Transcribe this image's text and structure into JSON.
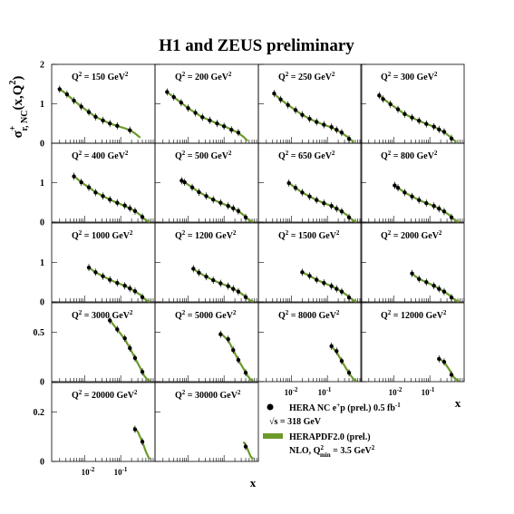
{
  "title": "H1 and ZEUS preliminary",
  "y_axis_label": {
    "main": "σ",
    "sup": "+",
    "sub": "r, NC",
    "args": "(x,Q",
    "args_sup": "2",
    "close": ")"
  },
  "x_axis_label": "x",
  "x_tick_labels": {
    "e1_base": "10",
    "e1_exp": "-2",
    "e2_base": "10",
    "e2_exp": "-1"
  },
  "legend": {
    "data_label_main": "HERA NC e",
    "data_label_sup": "+",
    "data_label_rest": "p (prel.) 0.5 fb",
    "data_label_exp": "-1",
    "sqrt_s": "√s = 318 GeV",
    "fit_label": "HERAPDF2.0 (prel.)",
    "fit_detail_main": "NLO, Q",
    "fit_detail_sup": "2",
    "fit_detail_sub": "min",
    "fit_detail_rest": " = 3.5 GeV",
    "fit_detail_exp": "2"
  },
  "colors": {
    "data_marker": "#000000",
    "fit_band": "#6b9a2a",
    "axes": "#000000",
    "background": "#ffffff"
  },
  "chart_data": [
    {
      "type": "line",
      "q2": "150",
      "ylim": [
        0,
        2
      ],
      "yticks": [
        "0",
        "1",
        "2"
      ],
      "x": [
        0.002,
        0.0032,
        0.005,
        0.008,
        0.013,
        0.02,
        0.032,
        0.05,
        0.08,
        0.18
      ],
      "y": [
        1.37,
        1.24,
        1.08,
        0.93,
        0.79,
        0.67,
        0.58,
        0.5,
        0.44,
        0.33
      ],
      "fit_x": [
        0.0018,
        0.003,
        0.005,
        0.008,
        0.013,
        0.02,
        0.032,
        0.05,
        0.08,
        0.13,
        0.18,
        0.25,
        0.35
      ],
      "fit_y": [
        1.4,
        1.26,
        1.08,
        0.93,
        0.79,
        0.67,
        0.58,
        0.5,
        0.44,
        0.38,
        0.33,
        0.25,
        0.14
      ]
    },
    {
      "type": "line",
      "q2": "200",
      "ylim": [
        0,
        2
      ],
      "yticks": [
        "0",
        "1",
        "2"
      ],
      "x": [
        0.0026,
        0.004,
        0.0064,
        0.01,
        0.016,
        0.025,
        0.04,
        0.064,
        0.1,
        0.16,
        0.25
      ],
      "y": [
        1.3,
        1.17,
        1.03,
        0.89,
        0.77,
        0.66,
        0.58,
        0.5,
        0.43,
        0.34,
        0.27
      ],
      "fit_x": [
        0.0024,
        0.004,
        0.0064,
        0.01,
        0.016,
        0.025,
        0.04,
        0.064,
        0.1,
        0.16,
        0.25,
        0.35,
        0.45
      ],
      "fit_y": [
        1.32,
        1.17,
        1.03,
        0.89,
        0.77,
        0.66,
        0.58,
        0.5,
        0.43,
        0.35,
        0.26,
        0.16,
        0.06
      ]
    },
    {
      "type": "line",
      "q2": "250",
      "ylim": [
        0,
        2
      ],
      "yticks": [
        "0",
        "1",
        "2"
      ],
      "x": [
        0.0033,
        0.005,
        0.008,
        0.013,
        0.02,
        0.032,
        0.05,
        0.08,
        0.13,
        0.18,
        0.25,
        0.4
      ],
      "y": [
        1.26,
        1.11,
        0.97,
        0.84,
        0.72,
        0.62,
        0.54,
        0.47,
        0.41,
        0.34,
        0.27,
        0.11
      ],
      "fit_x": [
        0.003,
        0.005,
        0.008,
        0.013,
        0.02,
        0.032,
        0.05,
        0.08,
        0.13,
        0.18,
        0.25,
        0.35,
        0.45,
        0.55
      ],
      "fit_y": [
        1.28,
        1.11,
        0.97,
        0.84,
        0.72,
        0.62,
        0.54,
        0.47,
        0.4,
        0.34,
        0.26,
        0.17,
        0.08,
        0.03
      ]
    },
    {
      "type": "line",
      "q2": "300",
      "ylim": [
        0,
        2
      ],
      "yticks": [
        "0",
        "1",
        "2"
      ],
      "x": [
        0.0039,
        0.005,
        0.008,
        0.013,
        0.02,
        0.032,
        0.05,
        0.08,
        0.13,
        0.18,
        0.25,
        0.4
      ],
      "y": [
        1.21,
        1.12,
        0.99,
        0.86,
        0.74,
        0.65,
        0.57,
        0.49,
        0.42,
        0.35,
        0.29,
        0.12
      ],
      "fit_x": [
        0.0037,
        0.005,
        0.008,
        0.013,
        0.02,
        0.032,
        0.05,
        0.08,
        0.13,
        0.18,
        0.25,
        0.35,
        0.45,
        0.55
      ],
      "fit_y": [
        1.23,
        1.13,
        0.99,
        0.86,
        0.74,
        0.65,
        0.57,
        0.49,
        0.42,
        0.35,
        0.28,
        0.18,
        0.09,
        0.03
      ]
    },
    {
      "type": "line",
      "q2": "400",
      "ylim": [
        0,
        2
      ],
      "yticks": [
        "0",
        "1"
      ],
      "x": [
        0.005,
        0.008,
        0.013,
        0.02,
        0.032,
        0.05,
        0.08,
        0.13,
        0.18,
        0.25,
        0.4
      ],
      "y": [
        1.16,
        1.01,
        0.88,
        0.75,
        0.66,
        0.57,
        0.49,
        0.42,
        0.35,
        0.28,
        0.13
      ],
      "fit_x": [
        0.0048,
        0.008,
        0.013,
        0.02,
        0.032,
        0.05,
        0.08,
        0.13,
        0.18,
        0.25,
        0.35,
        0.45,
        0.55,
        0.65
      ],
      "fit_y": [
        1.18,
        1.01,
        0.88,
        0.76,
        0.66,
        0.57,
        0.49,
        0.41,
        0.35,
        0.28,
        0.18,
        0.08,
        0.03,
        0.01
      ]
    },
    {
      "type": "line",
      "q2": "500",
      "ylim": [
        0,
        2
      ],
      "yticks": [
        "0",
        "1"
      ],
      "x": [
        0.0066,
        0.008,
        0.013,
        0.02,
        0.032,
        0.05,
        0.08,
        0.13,
        0.18,
        0.25,
        0.4
      ],
      "y": [
        1.05,
        1.01,
        0.88,
        0.76,
        0.66,
        0.57,
        0.49,
        0.41,
        0.35,
        0.28,
        0.12
      ],
      "fit_x": [
        0.0062,
        0.008,
        0.013,
        0.02,
        0.032,
        0.05,
        0.08,
        0.13,
        0.18,
        0.25,
        0.35,
        0.45,
        0.55,
        0.65
      ],
      "fit_y": [
        1.07,
        1.01,
        0.88,
        0.76,
        0.66,
        0.57,
        0.49,
        0.41,
        0.35,
        0.28,
        0.18,
        0.08,
        0.03,
        0.01
      ]
    },
    {
      "type": "line",
      "q2": "650",
      "ylim": [
        0,
        2
      ],
      "yticks": [
        "0",
        "1"
      ],
      "x": [
        0.0085,
        0.013,
        0.02,
        0.032,
        0.05,
        0.08,
        0.13,
        0.18,
        0.25,
        0.4
      ],
      "y": [
        0.99,
        0.87,
        0.75,
        0.65,
        0.56,
        0.48,
        0.41,
        0.34,
        0.27,
        0.12
      ],
      "fit_x": [
        0.008,
        0.013,
        0.02,
        0.032,
        0.05,
        0.08,
        0.13,
        0.18,
        0.25,
        0.35,
        0.45,
        0.55,
        0.65
      ],
      "fit_y": [
        1.01,
        0.87,
        0.75,
        0.65,
        0.56,
        0.48,
        0.41,
        0.34,
        0.27,
        0.18,
        0.08,
        0.03,
        0.01
      ]
    },
    {
      "type": "line",
      "q2": "800",
      "ylim": [
        0,
        2
      ],
      "yticks": [
        "0",
        "1"
      ],
      "x": [
        0.0105,
        0.013,
        0.02,
        0.032,
        0.05,
        0.08,
        0.13,
        0.18,
        0.25,
        0.4
      ],
      "y": [
        0.93,
        0.87,
        0.75,
        0.65,
        0.56,
        0.48,
        0.41,
        0.34,
        0.27,
        0.12
      ],
      "fit_x": [
        0.0098,
        0.013,
        0.02,
        0.032,
        0.05,
        0.08,
        0.13,
        0.18,
        0.25,
        0.35,
        0.45,
        0.55,
        0.65
      ],
      "fit_y": [
        0.95,
        0.87,
        0.75,
        0.65,
        0.56,
        0.48,
        0.41,
        0.34,
        0.27,
        0.18,
        0.08,
        0.03,
        0.01
      ]
    },
    {
      "type": "line",
      "q2": "1000",
      "ylim": [
        0,
        2
      ],
      "yticks": [
        "0",
        "1"
      ],
      "x": [
        0.013,
        0.02,
        0.032,
        0.05,
        0.08,
        0.13,
        0.18,
        0.25,
        0.4
      ],
      "y": [
        0.87,
        0.75,
        0.65,
        0.56,
        0.48,
        0.41,
        0.34,
        0.27,
        0.12
      ],
      "fit_x": [
        0.012,
        0.02,
        0.032,
        0.05,
        0.08,
        0.13,
        0.18,
        0.25,
        0.35,
        0.45,
        0.55,
        0.65
      ],
      "fit_y": [
        0.89,
        0.75,
        0.65,
        0.56,
        0.48,
        0.41,
        0.34,
        0.27,
        0.18,
        0.08,
        0.03,
        0.01
      ]
    },
    {
      "type": "line",
      "q2": "1200",
      "ylim": [
        0,
        2
      ],
      "yticks": [
        "0",
        "1"
      ],
      "x": [
        0.014,
        0.02,
        0.032,
        0.05,
        0.08,
        0.13,
        0.18,
        0.25,
        0.4
      ],
      "y": [
        0.84,
        0.74,
        0.64,
        0.55,
        0.47,
        0.4,
        0.33,
        0.26,
        0.12
      ],
      "fit_x": [
        0.013,
        0.02,
        0.032,
        0.05,
        0.08,
        0.13,
        0.18,
        0.25,
        0.35,
        0.45,
        0.55,
        0.65
      ],
      "fit_y": [
        0.86,
        0.74,
        0.64,
        0.55,
        0.47,
        0.4,
        0.33,
        0.26,
        0.17,
        0.08,
        0.03,
        0.01
      ]
    },
    {
      "type": "line",
      "q2": "1500",
      "ylim": [
        0,
        2
      ],
      "yticks": [
        "0",
        "1"
      ],
      "x": [
        0.02,
        0.032,
        0.05,
        0.08,
        0.13,
        0.18,
        0.25,
        0.4
      ],
      "y": [
        0.75,
        0.66,
        0.56,
        0.48,
        0.4,
        0.33,
        0.26,
        0.11
      ],
      "fit_x": [
        0.018,
        0.032,
        0.05,
        0.08,
        0.13,
        0.18,
        0.25,
        0.35,
        0.45,
        0.55,
        0.65
      ],
      "fit_y": [
        0.77,
        0.66,
        0.56,
        0.48,
        0.4,
        0.33,
        0.26,
        0.17,
        0.08,
        0.03,
        0.01
      ]
    },
    {
      "type": "line",
      "q2": "2000",
      "ylim": [
        0,
        2
      ],
      "yticks": [
        "0",
        "1"
      ],
      "x": [
        0.032,
        0.05,
        0.08,
        0.13,
        0.18,
        0.25,
        0.4
      ],
      "y": [
        0.72,
        0.58,
        0.5,
        0.41,
        0.33,
        0.26,
        0.11
      ],
      "fit_x": [
        0.03,
        0.05,
        0.08,
        0.13,
        0.18,
        0.25,
        0.35,
        0.45,
        0.55,
        0.65
      ],
      "fit_y": [
        0.73,
        0.58,
        0.5,
        0.41,
        0.33,
        0.26,
        0.17,
        0.08,
        0.03,
        0.01
      ]
    },
    {
      "type": "line",
      "q2": "3000",
      "ylim": [
        0,
        0.8
      ],
      "yticks": [
        "0",
        "0.5"
      ],
      "x": [
        0.05,
        0.08,
        0.13,
        0.18,
        0.25,
        0.4
      ],
      "y": [
        0.62,
        0.53,
        0.44,
        0.34,
        0.24,
        0.1
      ],
      "fit_x": [
        0.046,
        0.08,
        0.13,
        0.18,
        0.25,
        0.35,
        0.45,
        0.55,
        0.65
      ],
      "fit_y": [
        0.64,
        0.53,
        0.43,
        0.34,
        0.24,
        0.14,
        0.06,
        0.02,
        0.01
      ]
    },
    {
      "type": "line",
      "q2": "5000",
      "ylim": [
        0,
        0.8
      ],
      "yticks": [
        "0",
        "0.5"
      ],
      "x": [
        0.08,
        0.13,
        0.18,
        0.25,
        0.4
      ],
      "y": [
        0.48,
        0.43,
        0.32,
        0.22,
        0.09
      ],
      "fit_x": [
        0.075,
        0.13,
        0.18,
        0.25,
        0.35,
        0.45,
        0.55,
        0.65
      ],
      "fit_y": [
        0.5,
        0.42,
        0.32,
        0.22,
        0.13,
        0.06,
        0.02,
        0.01
      ]
    },
    {
      "type": "line",
      "q2": "8000",
      "ylim": [
        0,
        0.8
      ],
      "yticks": [
        "0",
        "0.5"
      ],
      "x": [
        0.13,
        0.18,
        0.25,
        0.4
      ],
      "y": [
        0.36,
        0.31,
        0.21,
        0.09
      ],
      "fit_x": [
        0.12,
        0.18,
        0.25,
        0.35,
        0.45,
        0.55,
        0.65
      ],
      "fit_y": [
        0.37,
        0.3,
        0.21,
        0.12,
        0.06,
        0.02,
        0.01
      ]
    },
    {
      "type": "line",
      "q2": "12000",
      "ylim": [
        0,
        0.8
      ],
      "yticks": [
        "0",
        "0.5"
      ],
      "x": [
        0.18,
        0.25,
        0.4
      ],
      "y": [
        0.23,
        0.2,
        0.07
      ],
      "fit_x": [
        0.17,
        0.25,
        0.35,
        0.45,
        0.55,
        0.65
      ],
      "fit_y": [
        0.24,
        0.2,
        0.12,
        0.05,
        0.02,
        0.01
      ]
    },
    {
      "type": "line",
      "q2": "20000",
      "ylim": [
        0,
        0.32
      ],
      "yticks": [
        "0",
        "0.2"
      ],
      "x": [
        0.25,
        0.4
      ],
      "y": [
        0.13,
        0.08
      ],
      "fit_x": [
        0.23,
        0.3,
        0.4,
        0.5,
        0.6,
        0.65
      ],
      "fit_y": [
        0.14,
        0.12,
        0.08,
        0.04,
        0.015,
        0.01
      ]
    },
    {
      "type": "line",
      "q2": "30000",
      "ylim": [
        0,
        0.32
      ],
      "yticks": [
        "0",
        "0.2"
      ],
      "x": [
        0.4
      ],
      "y": [
        0.06
      ],
      "fit_x": [
        0.35,
        0.45,
        0.55,
        0.65
      ],
      "fit_y": [
        0.08,
        0.05,
        0.02,
        0.01
      ]
    }
  ]
}
